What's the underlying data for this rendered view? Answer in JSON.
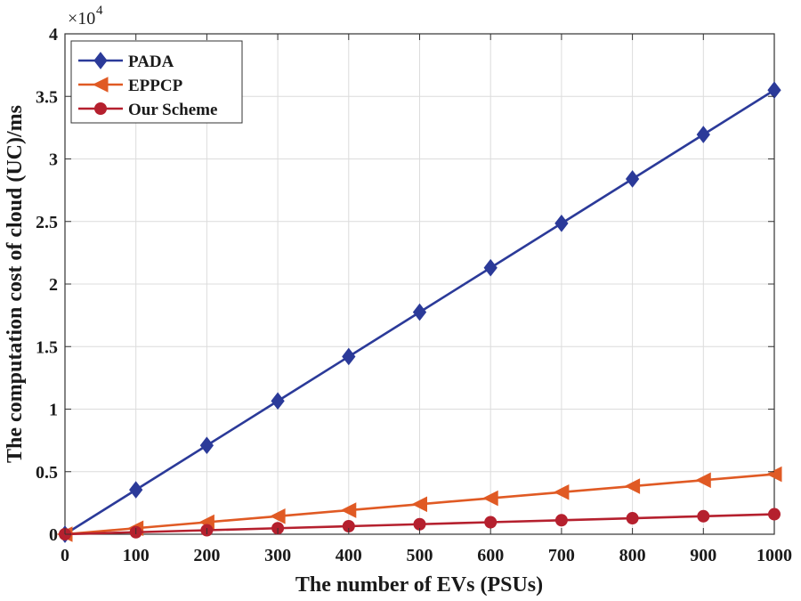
{
  "chart_data": {
    "type": "line",
    "xlabel": "The number of EVs (PSUs)",
    "ylabel": "The computation cost of cloud (UC)/ms",
    "y_multiplier_base": "×10",
    "y_multiplier_exponent": "4",
    "x": [
      0,
      100,
      200,
      300,
      400,
      500,
      600,
      700,
      800,
      900,
      1000
    ],
    "xlim": [
      0,
      1000
    ],
    "ylim": [
      0,
      4
    ],
    "x_ticks": [
      0,
      100,
      200,
      300,
      400,
      500,
      600,
      700,
      800,
      900,
      1000
    ],
    "x_tick_labels": [
      "0",
      "100",
      "200",
      "300",
      "400",
      "500",
      "600",
      "700",
      "800",
      "900",
      "1000"
    ],
    "y_ticks": [
      0,
      0.5,
      1,
      1.5,
      2,
      2.5,
      3,
      3.5,
      4
    ],
    "y_tick_labels": [
      "0",
      "0.5",
      "1",
      "1.5",
      "2",
      "2.5",
      "3",
      "3.5",
      "4"
    ],
    "grid": true,
    "legend_position": "top-left",
    "series": [
      {
        "name": "PADA",
        "color": "#2b3a99",
        "marker": "diamond",
        "values": [
          0,
          0.355,
          0.71,
          1.065,
          1.42,
          1.775,
          2.13,
          2.485,
          2.84,
          3.195,
          3.55
        ]
      },
      {
        "name": "EPPCP",
        "color": "#e05a24",
        "marker": "triangle-left",
        "values": [
          0,
          0.048,
          0.096,
          0.144,
          0.192,
          0.24,
          0.288,
          0.336,
          0.384,
          0.432,
          0.48
        ]
      },
      {
        "name": "Our Scheme",
        "color": "#b5202e",
        "marker": "circle",
        "values": [
          0,
          0.016,
          0.032,
          0.048,
          0.064,
          0.08,
          0.096,
          0.112,
          0.128,
          0.144,
          0.16
        ]
      }
    ]
  }
}
